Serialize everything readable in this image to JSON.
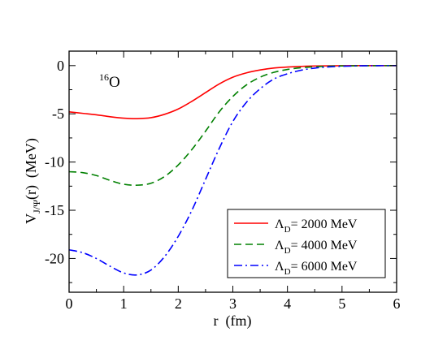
{
  "chart_data": {
    "type": "line",
    "xlabel": "r  (fm)",
    "ylabel": {
      "main": "V",
      "sub": "J/Ψ",
      "rest": "(r)  (MeV)"
    },
    "xlim": [
      0,
      6
    ],
    "ylim": [
      -23.5,
      1.5
    ],
    "xticks": [
      0,
      1,
      2,
      3,
      4,
      5,
      6
    ],
    "yticks": [
      0,
      -5,
      -10,
      -15,
      -20
    ],
    "grid": false,
    "legend_position": "bottom-right",
    "annotation": {
      "mass_number": "16",
      "element": "O"
    },
    "series": [
      {
        "name": "Λ_D= 2000 MeV",
        "legend": {
          "symbol": "Λ",
          "sub": "D",
          "rest": "= 2000 MeV"
        },
        "color": "#ff0000",
        "dash": "solid",
        "x": [
          0,
          0.25,
          0.5,
          0.75,
          1.0,
          1.25,
          1.5,
          1.75,
          2.0,
          2.25,
          2.5,
          2.75,
          3.0,
          3.25,
          3.5,
          3.75,
          4.0,
          4.25,
          4.5,
          5.0,
          5.5,
          6.0
        ],
        "y": [
          -4.8,
          -4.95,
          -5.1,
          -5.3,
          -5.45,
          -5.5,
          -5.4,
          -5.05,
          -4.5,
          -3.7,
          -2.8,
          -1.9,
          -1.2,
          -0.75,
          -0.45,
          -0.25,
          -0.15,
          -0.08,
          -0.04,
          -0.01,
          0,
          0
        ]
      },
      {
        "name": "Λ_D= 4000 MeV",
        "legend": {
          "symbol": "Λ",
          "sub": "D",
          "rest": "= 4000 MeV"
        },
        "color": "#008000",
        "dash": "dashed",
        "x": [
          0,
          0.25,
          0.5,
          0.75,
          1.0,
          1.25,
          1.5,
          1.75,
          2.0,
          2.25,
          2.5,
          2.75,
          3.0,
          3.25,
          3.5,
          3.75,
          4.0,
          4.25,
          4.5,
          4.75,
          5.0,
          5.5,
          6.0
        ],
        "y": [
          -11.0,
          -11.1,
          -11.4,
          -11.9,
          -12.3,
          -12.4,
          -12.2,
          -11.5,
          -10.3,
          -8.7,
          -6.8,
          -4.8,
          -3.2,
          -2.0,
          -1.2,
          -0.7,
          -0.4,
          -0.22,
          -0.12,
          -0.06,
          -0.03,
          -0.01,
          0
        ]
      },
      {
        "name": "Λ_D= 6000 MeV",
        "legend": {
          "symbol": "Λ",
          "sub": "D",
          "rest": "= 6000 MeV"
        },
        "color": "#0000ff",
        "dash": "dashdot",
        "x": [
          0,
          0.25,
          0.5,
          0.75,
          1.0,
          1.25,
          1.5,
          1.75,
          2.0,
          2.25,
          2.5,
          2.75,
          3.0,
          3.25,
          3.5,
          3.75,
          4.0,
          4.25,
          4.5,
          4.75,
          5.0,
          5.25,
          5.5,
          6.0
        ],
        "y": [
          -19.1,
          -19.4,
          -20.0,
          -20.8,
          -21.5,
          -21.7,
          -21.2,
          -19.8,
          -17.7,
          -15.0,
          -11.8,
          -8.6,
          -5.8,
          -3.8,
          -2.4,
          -1.4,
          -0.85,
          -0.48,
          -0.26,
          -0.14,
          -0.07,
          -0.03,
          -0.01,
          0
        ]
      }
    ]
  }
}
